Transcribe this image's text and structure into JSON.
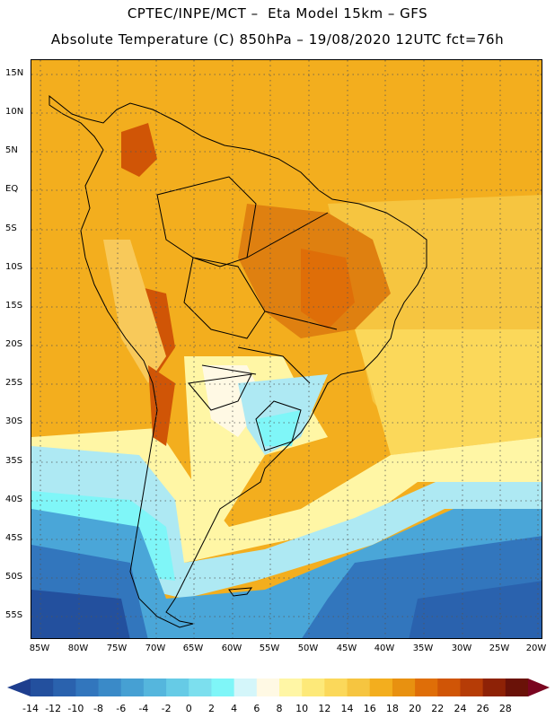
{
  "title": {
    "line1": "CPTEC/INPE/MCT –  Eta Model 15km – GFS",
    "line2": "Absolute Temperature (C) 850hPa – 19/08/2020 12UTC fct=76h"
  },
  "map": {
    "lat_labels": [
      "15N",
      "10N",
      "5N",
      "EQ",
      "5S",
      "10S",
      "15S",
      "20S",
      "25S",
      "30S",
      "35S",
      "40S",
      "45S",
      "50S",
      "55S"
    ],
    "lon_labels": [
      "85W",
      "80W",
      "75W",
      "70W",
      "65W",
      "60W",
      "55W",
      "50W",
      "45W",
      "40W",
      "35W",
      "30W",
      "25W",
      "20W"
    ],
    "colors": {
      "warm_bg": "#f0a818",
      "land_hot": "#e08a10",
      "andes": "#d06a0a",
      "cool_yellow": "#ffe98a",
      "pale": "#fff7d6",
      "cyan": "#7ff2f5",
      "light_blue": "#aee9f3",
      "mid_blue": "#4aa6d8",
      "deep_blue": "#1f5fa8"
    }
  },
  "colorbar": {
    "labels": [
      "-14",
      "-12",
      "-10",
      "-8",
      "-6",
      "-4",
      "-2",
      "0",
      "2",
      "4",
      "6",
      "8",
      "10",
      "12",
      "14",
      "16",
      "18",
      "20",
      "22",
      "24",
      "26",
      "28"
    ],
    "colors": [
      "#1e3e8e",
      "#23509e",
      "#2a62ae",
      "#3276bd",
      "#3a8ac8",
      "#46a0d3",
      "#55b6dd",
      "#66cbe6",
      "#7cdfee",
      "#7ff6f8",
      "#d4f6fa",
      "#fff9e4",
      "#fff6a5",
      "#fde979",
      "#fbd85a",
      "#f6c540",
      "#f3ae1e",
      "#e89110",
      "#df6e08",
      "#d05506",
      "#b63c06",
      "#8e2206",
      "#6a1208",
      "#7a0520"
    ]
  }
}
